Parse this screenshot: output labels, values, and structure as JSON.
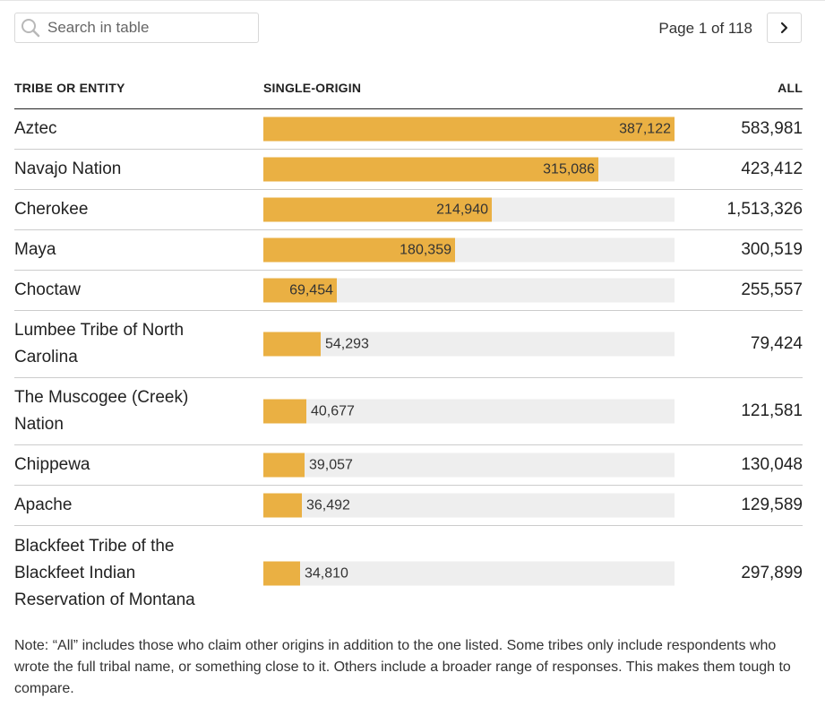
{
  "search": {
    "placeholder": "Search in table",
    "icon": "search-icon"
  },
  "pagination": {
    "label": "Page 1 of 118",
    "next_icon": "chevron-right-icon"
  },
  "columns": {
    "tribe": "TRIBE OR ENTITY",
    "single": "SINGLE-ORIGIN",
    "all": "ALL"
  },
  "colors": {
    "bar": "#eab043",
    "track": "#eeeeee"
  },
  "scale_max": 387122,
  "rows": [
    {
      "name": "Aztec",
      "single": "387,122",
      "single_value": 387122,
      "all": "583,981"
    },
    {
      "name": "Navajo Nation",
      "single": "315,086",
      "single_value": 315086,
      "all": "423,412"
    },
    {
      "name": "Cherokee",
      "single": "214,940",
      "single_value": 214940,
      "all": "1,513,326"
    },
    {
      "name": "Maya",
      "single": "180,359",
      "single_value": 180359,
      "all": "300,519"
    },
    {
      "name": "Choctaw",
      "single": "69,454",
      "single_value": 69454,
      "all": "255,557"
    },
    {
      "name": "Lumbee Tribe of North Carolina",
      "single": "54,293",
      "single_value": 54293,
      "all": "79,424"
    },
    {
      "name": "The Muscogee (Creek) Nation",
      "single": "40,677",
      "single_value": 40677,
      "all": "121,581"
    },
    {
      "name": "Chippewa",
      "single": "39,057",
      "single_value": 39057,
      "all": "130,048"
    },
    {
      "name": "Apache",
      "single": "36,492",
      "single_value": 36492,
      "all": "129,589"
    },
    {
      "name": "Blackfeet Tribe of the Blackfeet Indian Reservation of Montana",
      "single": "34,810",
      "single_value": 34810,
      "all": "297,899"
    }
  ],
  "note": "Note: “All” includes those who claim other origins in addition to the one listed. Some tribes only include respondents who wrote the full tribal name, or something close to it. Others include a broader range of responses. This makes them tough to compare."
}
